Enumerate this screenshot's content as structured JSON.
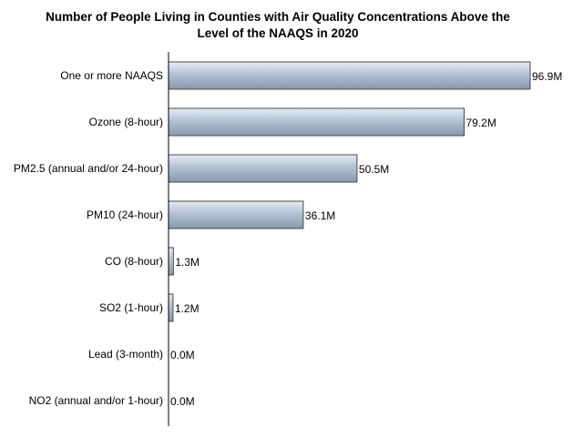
{
  "chart_data": {
    "type": "bar",
    "orientation": "horizontal",
    "title": {
      "line1": "Number of People Living in Counties with Air Quality Concentrations Above the",
      "line2": "Level of the NAAQS in 2020"
    },
    "categories": [
      "One or more NAAQS",
      "Ozone (8-hour)",
      "PM2.5 (annual and/or 24-hour)",
      "PM10 (24-hour)",
      "CO (8-hour)",
      "SO2 (1-hour)",
      "Lead (3-month)",
      "NO2 (annual and/or 1-hour)"
    ],
    "values": [
      96.9,
      79.2,
      50.5,
      36.1,
      1.3,
      1.2,
      0.0,
      0.0
    ],
    "value_labels": [
      "96.9M",
      "79.2M",
      "50.5M",
      "36.1M",
      "1.3M",
      "1.2M",
      "0.0M",
      "0.0M"
    ],
    "unit": "M",
    "xlim": [
      0,
      100
    ],
    "grid": false,
    "legend": "none",
    "colors": {
      "bar_top": "#e6ebf3",
      "bar_mid": "#b4c2d6",
      "bar_bottom": "#8797ad",
      "bar_stroke": "#4a4a4a",
      "axis": "#000000"
    }
  }
}
